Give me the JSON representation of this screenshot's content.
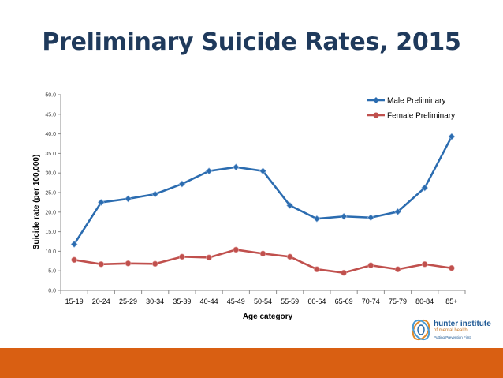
{
  "slide": {
    "title": "Preliminary Suicide Rates, 2015"
  },
  "colors": {
    "title": "#1f3a5c",
    "male": "#2b6cb0",
    "female": "#c0504d",
    "bottom_bar": "#d95f12"
  },
  "logo": {
    "name": "hunter institute",
    "sub": "of mental health",
    "tagline": "Putting Prevention First"
  },
  "chart_data": {
    "type": "line",
    "title": "",
    "xlabel": "Age category",
    "ylabel": "Suicide rate (per 100,000)",
    "ylim": [
      0,
      50
    ],
    "yticks": [
      "0.0",
      "5.0",
      "10.0",
      "15.0",
      "20.0",
      "25.0",
      "30.0",
      "35.0",
      "40.0",
      "45.0",
      "50.0"
    ],
    "categories": [
      "15-19",
      "20-24",
      "25-29",
      "30-34",
      "35-39",
      "40-44",
      "45-49",
      "50-54",
      "55-59",
      "60-64",
      "65-69",
      "70-74",
      "75-79",
      "80-84",
      "85+"
    ],
    "grid": false,
    "legend": "top-right",
    "series": [
      {
        "name": "Male Preliminary",
        "color": "#2b6cb0",
        "marker": "diamond",
        "values": [
          11.8,
          22.5,
          23.4,
          24.6,
          27.2,
          30.5,
          31.5,
          30.5,
          21.7,
          18.3,
          18.9,
          18.6,
          20.1,
          26.2,
          39.3
        ]
      },
      {
        "name": "Female Preliminary",
        "color": "#c0504d",
        "marker": "circle",
        "values": [
          7.8,
          6.7,
          6.9,
          6.8,
          8.6,
          8.4,
          10.4,
          9.4,
          8.6,
          5.4,
          4.5,
          6.4,
          5.4,
          6.7,
          5.7
        ]
      }
    ]
  }
}
